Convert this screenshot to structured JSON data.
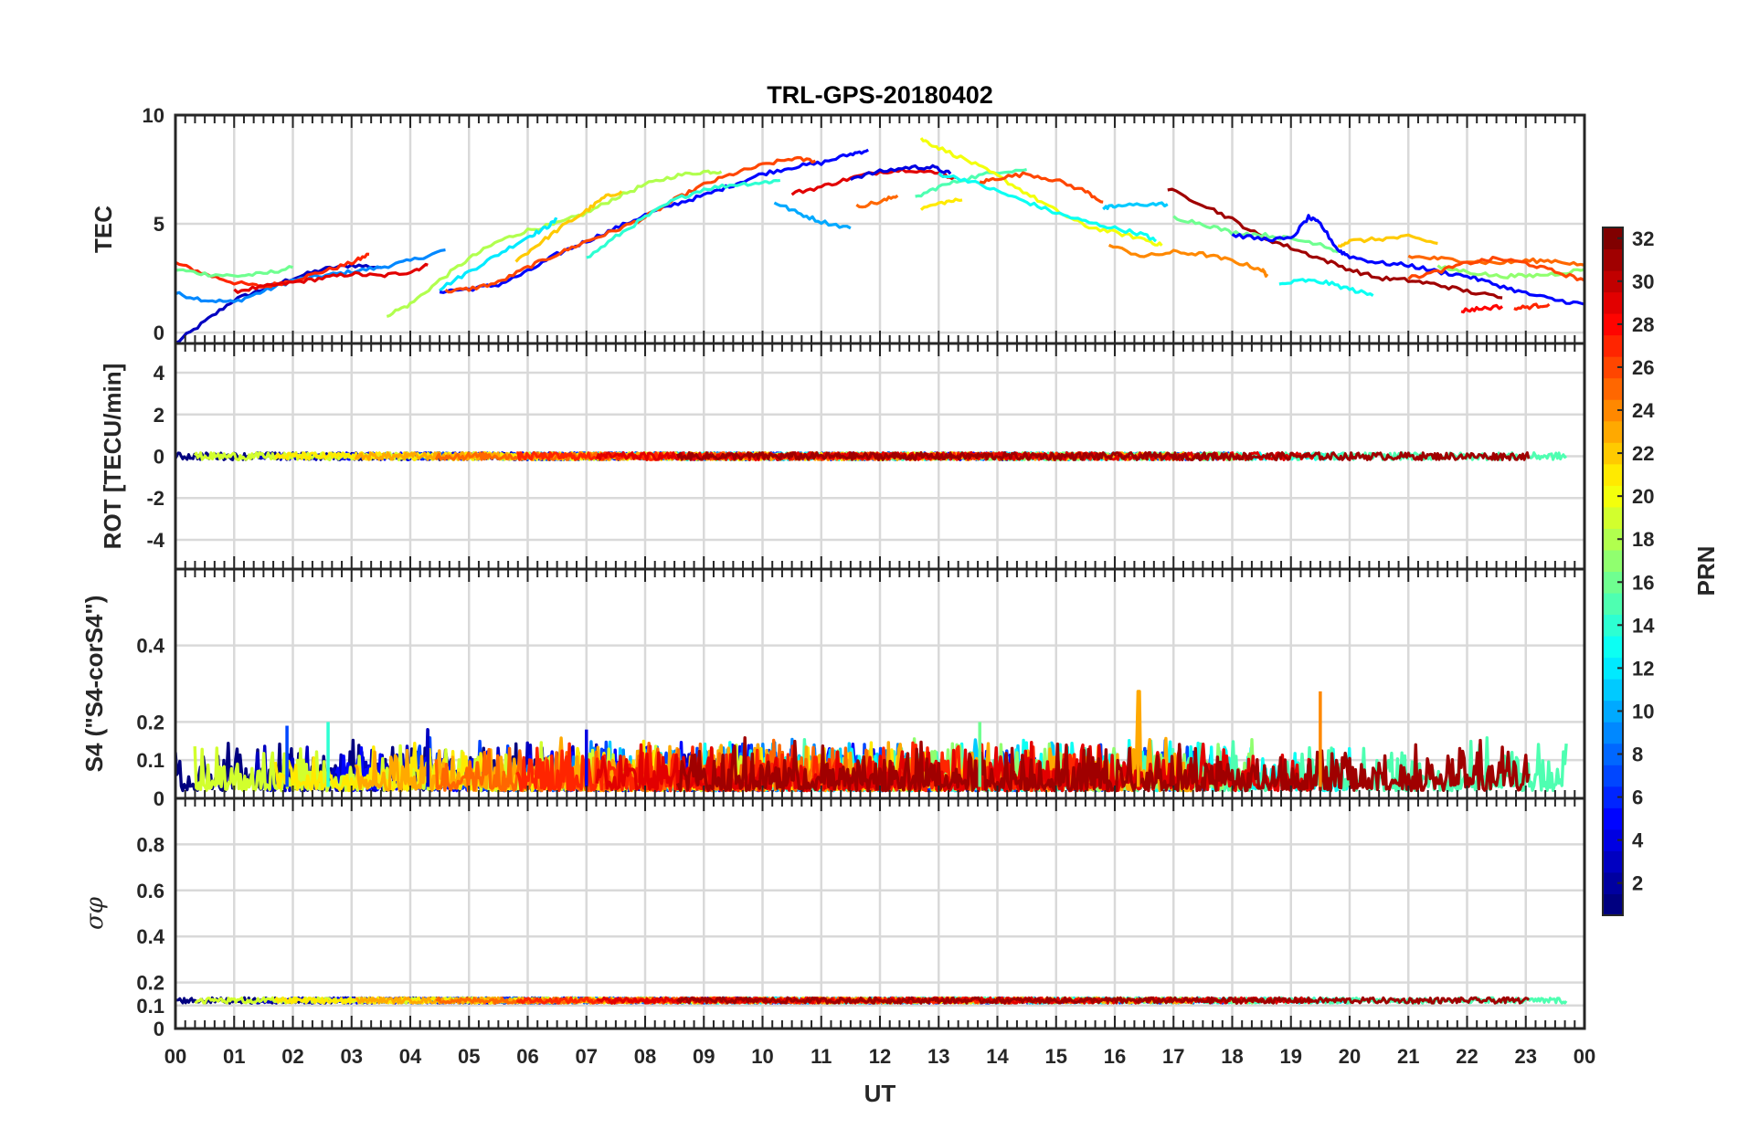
{
  "title": "TRL-GPS-20180402",
  "x_axis": {
    "label": "UT",
    "ticks": [
      "00",
      "01",
      "02",
      "03",
      "04",
      "05",
      "06",
      "07",
      "08",
      "09",
      "10",
      "11",
      "12",
      "13",
      "14",
      "15",
      "16",
      "17",
      "18",
      "19",
      "20",
      "21",
      "22",
      "23",
      "00"
    ]
  },
  "colorbar": {
    "label": "PRN",
    "range": [
      1,
      32
    ],
    "ticks": [
      "2",
      "4",
      "6",
      "8",
      "10",
      "12",
      "14",
      "16",
      "18",
      "20",
      "22",
      "24",
      "26",
      "28",
      "30",
      "32"
    ],
    "colormap": "jet"
  },
  "chart_data": [
    {
      "type": "line",
      "panel": "TEC",
      "ylabel": "TEC",
      "ylim": [
        -0.5,
        10
      ],
      "yticks": [
        "0",
        "5",
        "10"
      ],
      "ytick_values": [
        0,
        5,
        10
      ],
      "grid": true,
      "series": [
        {
          "name": "PRN 3",
          "prn": 3,
          "x": [
            0.0,
            0.5,
            1.0,
            1.5,
            2.0,
            2.5,
            3.0,
            3.5
          ],
          "values": [
            -0.5,
            0.5,
            1.5,
            2.0,
            2.5,
            2.9,
            3.1,
            3.0
          ]
        },
        {
          "name": "PRN 9",
          "prn": 9,
          "x": [
            0.0,
            0.5,
            1.0,
            1.5,
            2.0,
            2.5,
            3.0,
            3.5,
            4.0,
            4.6
          ],
          "values": [
            1.8,
            1.5,
            1.4,
            1.9,
            2.4,
            2.6,
            2.8,
            3.0,
            3.3,
            3.8
          ]
        },
        {
          "name": "PRN 27",
          "prn": 27,
          "x": [
            0.0,
            0.5,
            1.0,
            1.5,
            2.0,
            2.5,
            3.0,
            3.3
          ],
          "values": [
            3.2,
            2.7,
            2.3,
            2.1,
            2.4,
            2.8,
            3.2,
            3.6
          ]
        },
        {
          "name": "PRN 16",
          "prn": 16,
          "x": [
            0.0,
            0.5,
            1.0,
            1.5,
            2.0
          ],
          "values": [
            2.9,
            2.7,
            2.6,
            2.7,
            3.0
          ]
        },
        {
          "name": "PRN 29",
          "prn": 29,
          "x": [
            1.0,
            1.5,
            2.0,
            2.5,
            3.0,
            3.5,
            4.0,
            4.3
          ],
          "values": [
            1.9,
            2.1,
            2.3,
            2.5,
            2.7,
            2.6,
            2.8,
            3.1
          ]
        },
        {
          "name": "PRN 18",
          "prn": 18,
          "x": [
            3.6,
            4.0,
            4.5,
            5.0,
            5.5,
            6.0,
            6.5,
            7.0,
            7.5,
            8.0,
            8.5,
            9.0,
            9.3
          ],
          "values": [
            0.8,
            1.3,
            2.4,
            3.4,
            4.2,
            4.7,
            5.0,
            5.5,
            6.2,
            6.8,
            7.2,
            7.4,
            7.4
          ]
        },
        {
          "name": "PRN 12",
          "prn": 12,
          "x": [
            4.5,
            5.0,
            5.5,
            6.0,
            6.3,
            6.5
          ],
          "values": [
            2.0,
            2.8,
            3.6,
            4.4,
            4.8,
            5.2
          ]
        },
        {
          "name": "PRN 5",
          "prn": 5,
          "x": [
            4.5,
            5.0,
            5.5,
            6.0,
            6.5,
            7.0,
            7.5,
            8.0,
            8.5,
            9.0,
            9.5,
            10.0,
            10.5,
            11.0,
            11.5,
            11.8
          ],
          "values": [
            1.9,
            2.0,
            2.2,
            2.8,
            3.6,
            4.2,
            4.8,
            5.4,
            5.9,
            6.3,
            6.8,
            7.3,
            7.6,
            7.8,
            8.2,
            8.4
          ]
        },
        {
          "name": "PRN 26",
          "prn": 26,
          "x": [
            4.6,
            5.0,
            5.5,
            6.0,
            6.5,
            7.0,
            7.5,
            8.0,
            8.5,
            9.0,
            9.5,
            10.0,
            10.5,
            10.9
          ],
          "values": [
            1.9,
            2.0,
            2.3,
            3.0,
            3.6,
            4.2,
            4.7,
            5.3,
            6.1,
            6.8,
            7.3,
            7.7,
            8.0,
            7.9
          ]
        },
        {
          "name": "PRN 22",
          "prn": 22,
          "x": [
            5.8,
            6.2,
            6.6,
            7.0,
            7.3,
            7.6
          ],
          "values": [
            3.3,
            4.1,
            4.9,
            5.6,
            6.2,
            6.5
          ]
        },
        {
          "name": "PRN 14",
          "prn": 14,
          "x": [
            7.0,
            7.5,
            8.0,
            8.5,
            9.0,
            9.5,
            10.0,
            10.3
          ],
          "values": [
            3.4,
            4.4,
            5.3,
            6.1,
            6.6,
            6.8,
            6.9,
            7.0
          ]
        },
        {
          "name": "PRN 10",
          "prn": 10,
          "x": [
            10.2,
            10.6,
            11.0,
            11.5
          ],
          "values": [
            6.0,
            5.5,
            5.1,
            4.8
          ]
        },
        {
          "name": "PRN 29b",
          "prn": 29,
          "x": [
            10.5,
            11.0,
            11.5,
            12.0,
            12.5,
            13.0,
            13.3
          ],
          "values": [
            6.4,
            6.7,
            7.1,
            7.4,
            7.5,
            7.3,
            7.1
          ]
        },
        {
          "name": "PRN 25",
          "prn": 25,
          "x": [
            11.6,
            12.0,
            12.3
          ],
          "values": [
            5.8,
            6.0,
            6.3
          ]
        },
        {
          "name": "PRN 4",
          "prn": 4,
          "x": [
            11.5,
            12.0,
            12.5,
            12.9,
            13.2
          ],
          "values": [
            7.1,
            7.4,
            7.6,
            7.6,
            7.3
          ]
        },
        {
          "name": "PRN 15",
          "prn": 15,
          "x": [
            12.6,
            13.0,
            13.5,
            14.0,
            14.5
          ],
          "values": [
            6.2,
            6.7,
            7.1,
            7.4,
            7.5
          ]
        },
        {
          "name": "PRN 20",
          "prn": 20,
          "x": [
            12.7,
            13.0,
            13.5,
            14.0,
            14.5,
            15.0,
            15.5,
            16.0,
            16.5,
            16.8
          ],
          "values": [
            8.9,
            8.5,
            7.9,
            7.2,
            6.4,
            5.6,
            4.9,
            4.6,
            4.3,
            4.0
          ]
        },
        {
          "name": "PRN 21",
          "prn": 21,
          "x": [
            12.7,
            13.1,
            13.4
          ],
          "values": [
            5.7,
            6.0,
            6.1
          ]
        },
        {
          "name": "PRN 13",
          "prn": 13,
          "x": [
            13.0,
            13.5,
            14.0,
            14.5,
            15.0,
            15.5,
            16.0,
            16.5,
            16.7
          ],
          "values": [
            7.3,
            7.0,
            6.5,
            6.0,
            5.5,
            5.1,
            4.8,
            4.5,
            4.2
          ]
        },
        {
          "name": "PRN 26b",
          "prn": 26,
          "x": [
            13.7,
            14.0,
            14.5,
            15.0,
            15.5,
            15.8
          ],
          "values": [
            6.9,
            7.1,
            7.3,
            7.0,
            6.5,
            6.0
          ]
        },
        {
          "name": "PRN 11",
          "prn": 11,
          "x": [
            15.8,
            16.0,
            16.5,
            16.9
          ],
          "values": [
            5.7,
            5.8,
            5.9,
            5.9
          ]
        },
        {
          "name": "PRN 24",
          "prn": 24,
          "x": [
            15.9,
            16.5,
            17.0,
            17.5,
            18.0,
            18.5,
            18.6
          ],
          "values": [
            4.0,
            3.5,
            3.7,
            3.6,
            3.3,
            2.9,
            2.6
          ]
        },
        {
          "name": "PRN 31",
          "prn": 31,
          "x": [
            16.9,
            17.5,
            18.0,
            18.5,
            19.0,
            19.5,
            20.0,
            20.5,
            21.0,
            21.5,
            22.0,
            22.6
          ],
          "values": [
            6.6,
            5.9,
            5.2,
            4.4,
            3.9,
            3.4,
            2.9,
            2.5,
            2.4,
            2.2,
            1.9,
            1.6
          ]
        },
        {
          "name": "PRN 16b",
          "prn": 16,
          "x": [
            17.0,
            17.5,
            18.0,
            18.5,
            19.0,
            19.5,
            19.8
          ],
          "values": [
            5.3,
            5.0,
            4.6,
            4.5,
            4.3,
            4.1,
            3.7
          ]
        },
        {
          "name": "PRN 5b",
          "prn": 5,
          "x": [
            18.0,
            18.5,
            19.0,
            19.3,
            19.5,
            19.8,
            20.0,
            20.5,
            21.0,
            21.5,
            22.0,
            22.5,
            23.0,
            23.5,
            24.0
          ],
          "values": [
            4.5,
            4.3,
            4.3,
            5.3,
            5.0,
            3.8,
            3.5,
            3.2,
            3.1,
            2.8,
            2.6,
            2.2,
            1.8,
            1.5,
            1.3
          ]
        },
        {
          "name": "PRN 13b",
          "prn": 13,
          "x": [
            18.8,
            19.2,
            19.6,
            20.0,
            20.4
          ],
          "values": [
            2.2,
            2.4,
            2.3,
            2.0,
            1.7
          ]
        },
        {
          "name": "PRN 22b",
          "prn": 22,
          "x": [
            19.8,
            20.0,
            20.5,
            21.0,
            21.5
          ],
          "values": [
            4.0,
            4.2,
            4.3,
            4.4,
            4.1
          ]
        },
        {
          "name": "PRN 25b",
          "prn": 25,
          "x": [
            21.0,
            21.5,
            22.0,
            22.5,
            23.0,
            23.5,
            24.0
          ],
          "values": [
            3.5,
            3.4,
            3.3,
            3.2,
            3.3,
            3.3,
            3.1
          ]
        },
        {
          "name": "PRN 17",
          "prn": 17,
          "x": [
            21.5,
            22.0,
            22.5,
            23.0,
            23.5,
            24.0
          ],
          "values": [
            3.0,
            2.8,
            2.6,
            2.6,
            2.7,
            2.9
          ]
        },
        {
          "name": "PRN 28",
          "prn": 28,
          "x": [
            21.9,
            22.2,
            22.6
          ],
          "values": [
            1.0,
            1.1,
            1.2
          ]
        },
        {
          "name": "PRN 27b",
          "prn": 27,
          "x": [
            22.8,
            23.1,
            23.4
          ],
          "values": [
            1.1,
            1.2,
            1.3
          ]
        },
        {
          "name": "PRN 26c",
          "prn": 26,
          "x": [
            21.0,
            21.5,
            22.0,
            22.5,
            23.0,
            23.5,
            24.0
          ],
          "values": [
            2.5,
            2.8,
            3.2,
            3.4,
            3.2,
            2.8,
            2.4
          ]
        }
      ]
    },
    {
      "type": "line",
      "panel": "ROT",
      "ylabel": "ROT [TECU/min]",
      "ylim": [
        -5.4,
        5.4
      ],
      "yticks": [
        "4",
        "2",
        "0",
        "-2",
        "-4"
      ],
      "ytick_values": [
        4,
        2,
        0,
        -2,
        -4
      ],
      "grid": true,
      "series_note": "All PRN traces stay within about ±0.3 TECU/min of zero across the day",
      "value_range": [
        -0.3,
        0.3
      ]
    },
    {
      "type": "line",
      "panel": "S4",
      "ylabel": "S4 (\"S4-corS4\")",
      "ylim": [
        0,
        0.6
      ],
      "yticks": [
        "0.4",
        "0.2",
        "0.1",
        "0"
      ],
      "ytick_values": [
        0.4,
        0.2,
        0.1,
        0
      ],
      "grid": true,
      "series_note": "Dense noisy traces for all PRNs, typically 0.02–0.12",
      "typical_range": [
        0.02,
        0.12
      ],
      "spikes": [
        {
          "x": 16.4,
          "value": 0.28,
          "prn": 23
        },
        {
          "x": 19.5,
          "value": 0.28,
          "prn": 24
        },
        {
          "x": 1.9,
          "value": 0.19,
          "prn": 7
        },
        {
          "x": 2.6,
          "value": 0.2,
          "prn": 14
        },
        {
          "x": 4.3,
          "value": 0.18,
          "prn": 3
        },
        {
          "x": 7.0,
          "value": 0.18,
          "prn": 4
        },
        {
          "x": 13.7,
          "value": 0.2,
          "prn": 16
        }
      ]
    },
    {
      "type": "line",
      "panel": "sigma_phi",
      "ylabel": "σφ",
      "ylim": [
        0,
        1.0
      ],
      "yticks": [
        "0.8",
        "0.6",
        "0.4",
        "0.2",
        "0.1",
        "0"
      ],
      "ytick_values": [
        0.8,
        0.6,
        0.4,
        0.2,
        0.1,
        0
      ],
      "grid": true,
      "series_note": "Nearly flat band for all PRNs around 0.11–0.15",
      "typical_range": [
        0.11,
        0.15
      ]
    }
  ]
}
